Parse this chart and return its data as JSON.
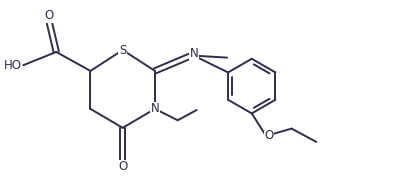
{
  "bg_color": "#ffffff",
  "line_color": "#2d2d4e",
  "line_width": 1.4,
  "font_size": 8.5,
  "fig_width": 4.01,
  "fig_height": 1.76,
  "dpi": 100,
  "xlim": [
    0,
    10.5
  ],
  "ylim": [
    0,
    4.6
  ]
}
